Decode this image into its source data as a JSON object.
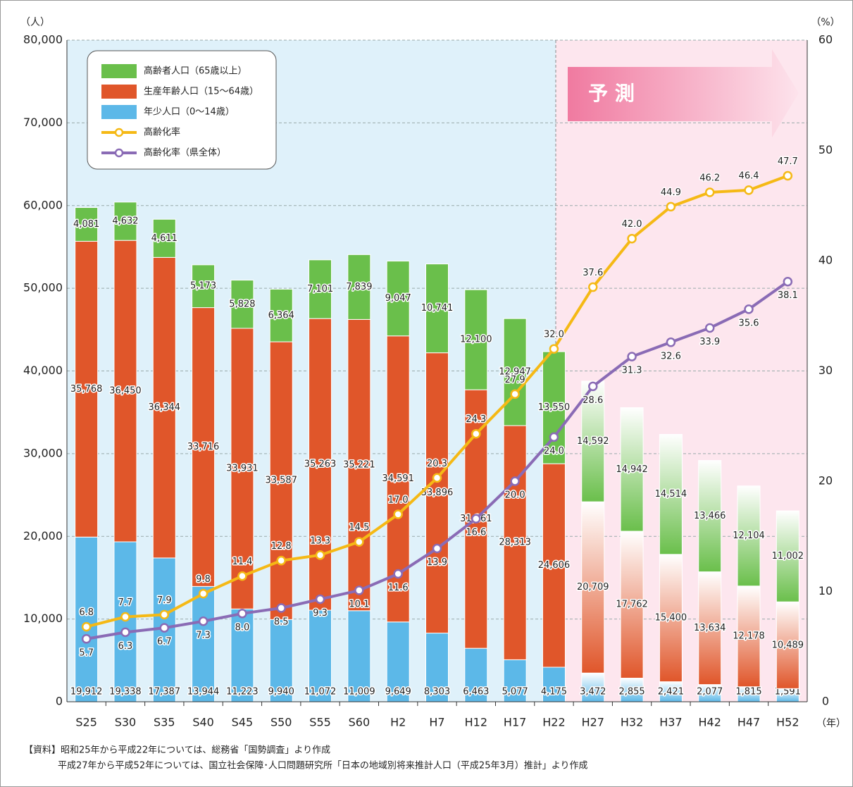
{
  "chart_data": {
    "type": "bar",
    "stacked": true,
    "categories": [
      "S25",
      "S30",
      "S35",
      "S40",
      "S45",
      "S50",
      "S55",
      "S60",
      "H2",
      "H7",
      "H12",
      "H17",
      "H22",
      "H27",
      "H32",
      "H37",
      "H42",
      "H47",
      "H52"
    ],
    "series": [
      {
        "name": "年少人口（0～14歳）",
        "color": "#5cb8e8",
        "type": "bar",
        "values": [
          19912,
          19338,
          17387,
          13944,
          11223,
          9940,
          11072,
          11009,
          9649,
          8303,
          6463,
          5077,
          4175,
          3472,
          2855,
          2421,
          2077,
          1815,
          1591
        ],
        "value_labels": [
          "19,912",
          "19,338",
          "17,387",
          "13,944",
          "11,223",
          "9,940",
          "11,072",
          "11,009",
          "9,649",
          "8,303",
          "6,463",
          "5,077",
          "4,175",
          "3,472",
          "2,855",
          "2,421",
          "2,077",
          "1,815",
          "1,591"
        ]
      },
      {
        "name": "生産年齢人口（15～64歳）",
        "color": "#e0562a",
        "type": "bar",
        "values": [
          35768,
          36450,
          36344,
          33716,
          33931,
          33587,
          35263,
          35221,
          34591,
          33896,
          31261,
          28313,
          24606,
          20709,
          17762,
          15400,
          13634,
          12178,
          10489
        ],
        "value_labels": [
          "35,768",
          "36,450",
          "36,344",
          "33,716",
          "33,931",
          "33,587",
          "35,263",
          "35,221",
          "34,591",
          "33,896",
          "31,261",
          "28,313",
          "24,606",
          "20,709",
          "17,762",
          "15,400",
          "13,634",
          "12,178",
          "10,489"
        ]
      },
      {
        "name": "高齢者人口（65歳以上）",
        "color": "#6abf4b",
        "type": "bar",
        "values": [
          4081,
          4632,
          4611,
          5173,
          5828,
          6364,
          7101,
          7839,
          9047,
          10741,
          12100,
          12947,
          13550,
          14592,
          14942,
          14514,
          13466,
          12104,
          11002
        ],
        "value_labels": [
          "4,081",
          "4,632",
          "4,611",
          "5,173",
          "5,828",
          "6,364",
          "7,101",
          "7,839",
          "9,047",
          "10,741",
          "12,100",
          "12,947",
          "13,550",
          "14,592",
          "14,942",
          "14,514",
          "13,466",
          "12,104",
          "11,002"
        ]
      },
      {
        "name": "高齢化率",
        "color": "#f5b915",
        "type": "line",
        "axis": "y2",
        "values": [
          6.8,
          7.7,
          7.9,
          9.8,
          11.4,
          12.8,
          13.3,
          14.5,
          17.0,
          20.3,
          24.3,
          27.9,
          32.0,
          37.6,
          42.0,
          44.9,
          46.2,
          46.4,
          47.7
        ],
        "value_labels": [
          "6.8",
          "7.7",
          "7.9",
          "9.8",
          "11.4",
          "12.8",
          "13.3",
          "14.5",
          "17.0",
          "20.3",
          "24.3",
          "27.9",
          "32.0",
          "37.6",
          "42.0",
          "44.9",
          "46.2",
          "46.4",
          "47.7"
        ]
      },
      {
        "name": "高齢化率（県全体）",
        "color": "#8a6bb5",
        "type": "line",
        "axis": "y2",
        "values": [
          5.7,
          6.3,
          6.7,
          7.3,
          8.0,
          8.5,
          9.3,
          10.1,
          11.6,
          13.9,
          16.6,
          20.0,
          24.0,
          28.6,
          31.3,
          32.6,
          33.9,
          35.6,
          38.1
        ],
        "value_labels": [
          "5.7",
          "6.3",
          "6.7",
          "7.3",
          "8.0",
          "8.5",
          "9.3",
          "10.1",
          "11.6",
          "13.9",
          "16.6",
          "20.0",
          "24.0",
          "28.6",
          "31.3",
          "32.6",
          "33.9",
          "35.6",
          "38.1"
        ]
      }
    ],
    "ylabel": "（人）",
    "y2label": "（%）",
    "xlabel": "（年）",
    "annotation": "予 測",
    "ylim": [
      0,
      80000
    ],
    "yticks": [
      0,
      {
        "value": 10000,
        "label": "10,000"
      },
      {
        "value": 20000,
        "label": "20,000"
      },
      {
        "value": 30000,
        "label": "30,000"
      },
      {
        "value": 40000,
        "label": "40,000"
      },
      {
        "value": 50000,
        "label": "50,000"
      },
      {
        "value": 60000,
        "label": "60,000"
      },
      {
        "value": 70000,
        "label": "70,000"
      },
      {
        "value": 80000,
        "label": "80,000"
      }
    ],
    "y2lim": [
      0,
      60
    ],
    "y2ticks": [
      0,
      10,
      20,
      30,
      40,
      50,
      60
    ],
    "grid": true,
    "legend": "upper left",
    "notes": [
      "【資料】昭和25年から平成22年については、総務省「国勢調査」より作成",
      "平成27年から平成52年については、国立社会保障･人口問題研究所「日本の地域別将来推計人口（平成25年3月）推計」より作成"
    ]
  }
}
